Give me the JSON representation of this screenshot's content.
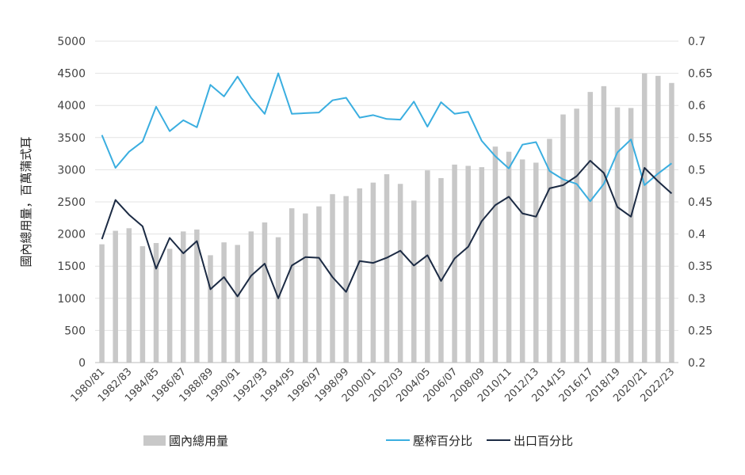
{
  "chart_data": {
    "type": "bar",
    "title": "",
    "xlabel": "",
    "ylabel": "國內總用量，百萬蒲式耳",
    "ylim": [
      0,
      5000
    ],
    "y2lim": [
      0.2,
      0.7
    ],
    "yticks": [
      "0",
      "500",
      "1000",
      "1500",
      "2000",
      "2500",
      "3000",
      "3500",
      "4000",
      "4500",
      "5000"
    ],
    "y2ticks": [
      "0.2",
      "0.25",
      "0.3",
      "0.35",
      "0.4",
      "0.45",
      "0.5",
      "0.55",
      "0.6",
      "0.65",
      "0.7"
    ],
    "grid": true,
    "legend_position": "bottom",
    "categories": [
      "1980/81",
      "1981/82",
      "1982/83",
      "1983/84",
      "1984/85",
      "1985/86",
      "1986/87",
      "1987/88",
      "1988/89",
      "1989/90",
      "1990/91",
      "1991/92",
      "1992/93",
      "1993/94",
      "1994/95",
      "1995/96",
      "1996/97",
      "1997/98",
      "1998/99",
      "1999/00",
      "2000/01",
      "2001/02",
      "2002/03",
      "2003/04",
      "2004/05",
      "2005/06",
      "2006/07",
      "2007/08",
      "2008/09",
      "2009/10",
      "2010/11",
      "2011/12",
      "2012/13",
      "2013/14",
      "2014/15",
      "2015/16",
      "2016/17",
      "2017/18",
      "2018/19",
      "2019/20",
      "2020/21",
      "2021/22",
      "2022/23"
    ],
    "x_tick_labels": [
      "1980/81",
      "",
      "1982/83",
      "",
      "1984/85",
      "",
      "1986/87",
      "",
      "1988/89",
      "",
      "1990/91",
      "",
      "1992/93",
      "",
      "1994/95",
      "",
      "1996/97",
      "",
      "1998/99",
      "",
      "2000/01",
      "",
      "2002/03",
      "",
      "2004/05",
      "",
      "2006/07",
      "",
      "2008/09",
      "",
      "2010/11",
      "",
      "2012/13",
      "",
      "2014/15",
      "",
      "2016/17",
      "",
      "2018/19",
      "",
      "2020/21",
      "",
      "2022/23"
    ],
    "series": [
      {
        "name": "國內總用量",
        "type": "bar",
        "axis": "left",
        "color": "#c8c8c8",
        "values": [
          1840,
          2050,
          2090,
          1810,
          1860,
          1770,
          2040,
          2070,
          1670,
          1870,
          1830,
          2040,
          2180,
          1950,
          2400,
          2320,
          2430,
          2620,
          2590,
          2710,
          2800,
          2930,
          2780,
          2520,
          2990,
          2870,
          3080,
          3060,
          3040,
          3360,
          3280,
          3160,
          3110,
          3480,
          3860,
          3950,
          4210,
          4300,
          3970,
          3960,
          4500,
          4460,
          4350
        ]
      },
      {
        "name": "壓榨百分比",
        "type": "line",
        "axis": "right",
        "color": "#3aaee0",
        "values": [
          0.554,
          0.503,
          0.528,
          0.544,
          0.598,
          0.56,
          0.577,
          0.566,
          0.632,
          0.614,
          0.645,
          0.612,
          0.587,
          0.65,
          0.587,
          0.588,
          0.589,
          0.608,
          0.612,
          0.581,
          0.585,
          0.579,
          0.578,
          0.606,
          0.567,
          0.605,
          0.587,
          0.59,
          0.545,
          0.521,
          0.502,
          0.539,
          0.543,
          0.498,
          0.485,
          0.478,
          0.451,
          0.478,
          0.527,
          0.547,
          0.476,
          0.494,
          0.51
        ]
      },
      {
        "name": "出口百分比",
        "type": "line",
        "axis": "right",
        "color": "#1c2b44",
        "values": [
          0.392,
          0.453,
          0.43,
          0.412,
          0.346,
          0.394,
          0.37,
          0.389,
          0.314,
          0.333,
          0.303,
          0.335,
          0.354,
          0.3,
          0.351,
          0.364,
          0.363,
          0.333,
          0.31,
          0.358,
          0.355,
          0.363,
          0.374,
          0.351,
          0.367,
          0.327,
          0.362,
          0.38,
          0.42,
          0.445,
          0.458,
          0.432,
          0.427,
          0.471,
          0.476,
          0.49,
          0.514,
          0.495,
          0.442,
          0.427,
          0.503,
          0.482,
          0.463
        ]
      }
    ]
  }
}
